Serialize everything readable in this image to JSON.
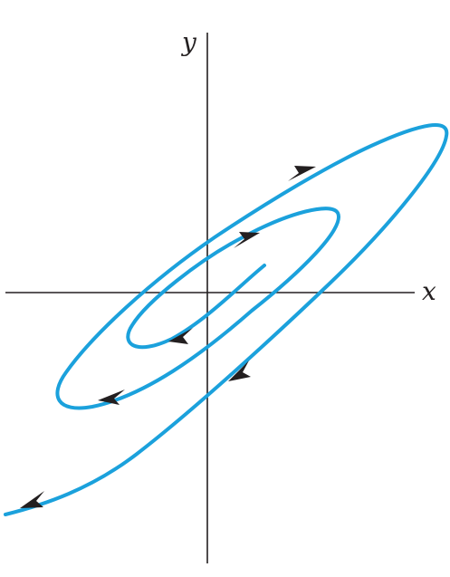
{
  "axes": {
    "x_label": "x",
    "y_label": "y"
  },
  "colors": {
    "axis": "#231f20",
    "trajectory": "#1ba1dc",
    "arrow": "#231f20",
    "background": "#ffffff"
  },
  "trajectory": {
    "kind": "spiral",
    "direction": "outward"
  }
}
